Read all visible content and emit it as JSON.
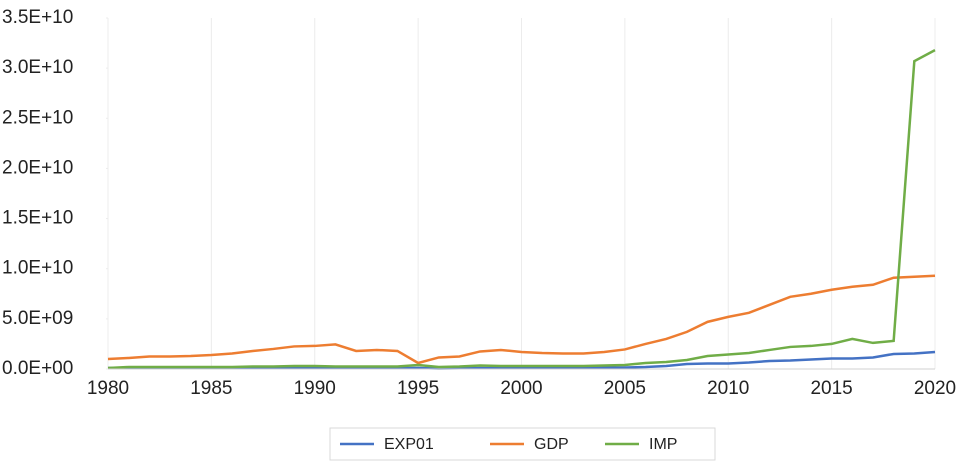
{
  "chart_data": {
    "type": "line",
    "x": [
      1980,
      1981,
      1982,
      1983,
      1984,
      1985,
      1986,
      1987,
      1988,
      1989,
      1990,
      1991,
      1992,
      1993,
      1994,
      1995,
      1996,
      1997,
      1998,
      1999,
      2000,
      2001,
      2002,
      2003,
      2004,
      2005,
      2006,
      2007,
      2008,
      2009,
      2010,
      2011,
      2012,
      2013,
      2014,
      2015,
      2016,
      2017,
      2018,
      2019,
      2020
    ],
    "series": [
      {
        "name": "EXP01",
        "color": "#4472c4",
        "values": [
          100000000.0,
          100000000.0,
          100000000.0,
          100000000.0,
          100000000.0,
          100000000.0,
          100000000.0,
          150000000.0,
          120000000.0,
          100000000.0,
          100000000.0,
          100000000.0,
          100000000.0,
          100000000.0,
          100000000.0,
          100000000.0,
          50000000.0,
          80000000.0,
          100000000.0,
          100000000.0,
          100000000.0,
          100000000.0,
          100000000.0,
          100000000.0,
          120000000.0,
          150000000.0,
          200000000.0,
          300000000.0,
          500000000.0,
          550000000.0,
          550000000.0,
          650000000.0,
          800000000.0,
          850000000.0,
          950000000.0,
          1050000000.0,
          1050000000.0,
          1150000000.0,
          1500000000.0,
          1550000000.0,
          1700000000.0
        ]
      },
      {
        "name": "GDP",
        "color": "#ed7d31",
        "values": [
          1000000000.0,
          1100000000.0,
          1250000000.0,
          1250000000.0,
          1300000000.0,
          1400000000.0,
          1550000000.0,
          1800000000.0,
          2000000000.0,
          2250000000.0,
          2300000000.0,
          2450000000.0,
          1800000000.0,
          1900000000.0,
          1800000000.0,
          600000000.0,
          1150000000.0,
          1250000000.0,
          1750000000.0,
          1900000000.0,
          1700000000.0,
          1600000000.0,
          1550000000.0,
          1550000000.0,
          1700000000.0,
          1950000000.0,
          2500000000.0,
          3000000000.0,
          3700000000.0,
          4700000000.0,
          5200000000.0,
          5600000000.0,
          6400000000.0,
          7200000000.0,
          7500000000.0,
          7900000000.0,
          8200000000.0,
          8400000000.0,
          9100000000.0,
          9200000000.0,
          9300000000.0
        ]
      },
      {
        "name": "IMP",
        "color": "#70ad47",
        "values": [
          100000000.0,
          200000000.0,
          200000000.0,
          200000000.0,
          200000000.0,
          200000000.0,
          200000000.0,
          250000000.0,
          250000000.0,
          300000000.0,
          300000000.0,
          250000000.0,
          250000000.0,
          250000000.0,
          250000000.0,
          400000000.0,
          200000000.0,
          250000000.0,
          350000000.0,
          300000000.0,
          300000000.0,
          300000000.0,
          300000000.0,
          300000000.0,
          350000000.0,
          400000000.0,
          600000000.0,
          700000000.0,
          900000000.0,
          1300000000.0,
          1450000000.0,
          1600000000.0,
          1900000000.0,
          2200000000.0,
          2300000000.0,
          2500000000.0,
          3000000000.0,
          2600000000.0,
          2800000000.0,
          30700000000.0,
          31800000000.0
        ]
      }
    ],
    "xlim": [
      1980,
      2020
    ],
    "xticks": [
      1980,
      1985,
      1990,
      1995,
      2000,
      2005,
      2010,
      2015,
      2020
    ],
    "ylim": [
      0,
      35000000000.0
    ],
    "yticks": [
      {
        "value": 0,
        "label": "0.0E+00"
      },
      {
        "value": 5000000000.0,
        "label": "5.0E+09"
      },
      {
        "value": 10000000000.0,
        "label": "1.0E+10"
      },
      {
        "value": 15000000000.0,
        "label": "1.5E+10"
      },
      {
        "value": 20000000000.0,
        "label": "2.0E+10"
      },
      {
        "value": 25000000000.0,
        "label": "2.5E+10"
      },
      {
        "value": 30000000000.0,
        "label": "3.0E+10"
      },
      {
        "value": 35000000000.0,
        "label": "3.5E+10"
      }
    ],
    "grid": true,
    "legend": "bottom"
  }
}
